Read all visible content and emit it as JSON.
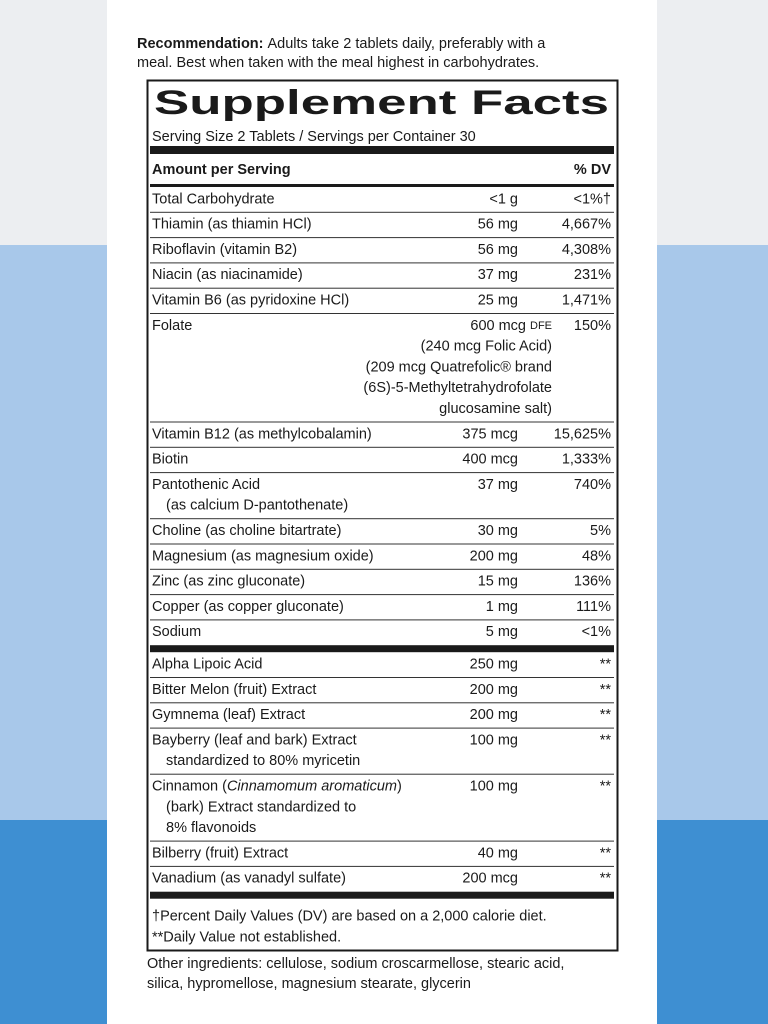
{
  "recommendation": {
    "label": "Recommendation:",
    "lines": [
      "Adults take 2 tablets daily, preferably with a",
      "meal. Best when taken with the meal highest in carbohydrates."
    ]
  },
  "title": "Supplement Facts",
  "serving": "Serving Size 2 Tablets / Servings per Container 30",
  "header": {
    "amount": "Amount per Serving",
    "dv": "% DV"
  },
  "sections": [
    {
      "rows": [
        {
          "name": [
            "Total Carbohydrate"
          ],
          "amount": [
            "<1 g"
          ],
          "dv": "<1%†"
        },
        {
          "name": [
            "Thiamin (as thiamin HCl)"
          ],
          "amount": [
            "56 mg"
          ],
          "dv": "4,667%"
        },
        {
          "name": [
            "Riboflavin (vitamin B2)"
          ],
          "amount": [
            "56 mg"
          ],
          "dv": "4,308%"
        },
        {
          "name": [
            "Niacin (as niacinamide)"
          ],
          "amount": [
            "37 mg"
          ],
          "dv": "231%"
        },
        {
          "name": [
            "Vitamin B6 (as pyridoxine HCl)"
          ],
          "amount": [
            "25 mg"
          ],
          "dv": "1,471%"
        },
        {
          "name": [
            "Folate"
          ],
          "amount": [
            [
              {
                "text": "600 mcg"
              },
              {
                "text": "DFE",
                "style": "small"
              }
            ],
            "(240 mcg Folic Acid)",
            "(209 mcg Quatrefolic® brand",
            "(6S)-5-Methyltetrahydrofolate",
            "glucosamine salt)"
          ],
          "dv": "150%"
        },
        {
          "name": [
            "Vitamin B12 (as methylcobalamin)"
          ],
          "amount": [
            "375 mcg"
          ],
          "dv": "15,625%"
        },
        {
          "name": [
            "Biotin"
          ],
          "amount": [
            "400 mcg"
          ],
          "dv": "1,333%"
        },
        {
          "name": [
            "Pantothenic Acid",
            "(as calcium D-pantothenate)"
          ],
          "amount": [
            "37 mg"
          ],
          "dv": "740%"
        },
        {
          "name": [
            "Choline (as choline bitartrate)"
          ],
          "amount": [
            "30 mg"
          ],
          "dv": "5%"
        },
        {
          "name": [
            "Magnesium (as magnesium oxide)"
          ],
          "amount": [
            "200 mg"
          ],
          "dv": "48%"
        },
        {
          "name": [
            "Zinc (as zinc gluconate)"
          ],
          "amount": [
            "15 mg"
          ],
          "dv": "136%"
        },
        {
          "name": [
            "Copper (as copper gluconate)"
          ],
          "amount": [
            "1 mg"
          ],
          "dv": "111%"
        },
        {
          "name": [
            "Sodium"
          ],
          "amount": [
            "5 mg"
          ],
          "dv": "<1%"
        }
      ]
    },
    {
      "rows": [
        {
          "name": [
            "Alpha Lipoic Acid"
          ],
          "amount": [
            "250 mg"
          ],
          "dv": "**"
        },
        {
          "name": [
            "Bitter Melon (fruit) Extract"
          ],
          "amount": [
            "200 mg"
          ],
          "dv": "**"
        },
        {
          "name": [
            "Gymnema (leaf) Extract"
          ],
          "amount": [
            "200 mg"
          ],
          "dv": "**"
        },
        {
          "name": [
            "Bayberry (leaf and bark) Extract",
            "standardized to 80% myricetin"
          ],
          "amount": [
            "100 mg"
          ],
          "dv": "**"
        },
        {
          "name": [
            [
              {
                "text": "Cinnamon ("
              },
              {
                "text": "Cinnamomum aromaticum",
                "style": "italic"
              },
              {
                "text": ")"
              }
            ],
            "(bark) Extract standardized to",
            "8% flavonoids"
          ],
          "amount": [
            "100 mg"
          ],
          "dv": "**"
        },
        {
          "name": [
            "Bilberry (fruit) Extract"
          ],
          "amount": [
            "40 mg"
          ],
          "dv": "**"
        },
        {
          "name": [
            "Vanadium (as vanadyl sulfate)"
          ],
          "amount": [
            "200 mcg"
          ],
          "dv": "**"
        }
      ]
    }
  ],
  "footnotes": [
    "†Percent Daily Values (DV) are based on a 2,000 calorie diet.",
    "**Daily Value not established."
  ],
  "other_ingredients": [
    "Other ingredients: cellulose, sodium croscarmellose, stearic acid,",
    "silica, hypromellose, magnesium stearate, glycerin"
  ]
}
